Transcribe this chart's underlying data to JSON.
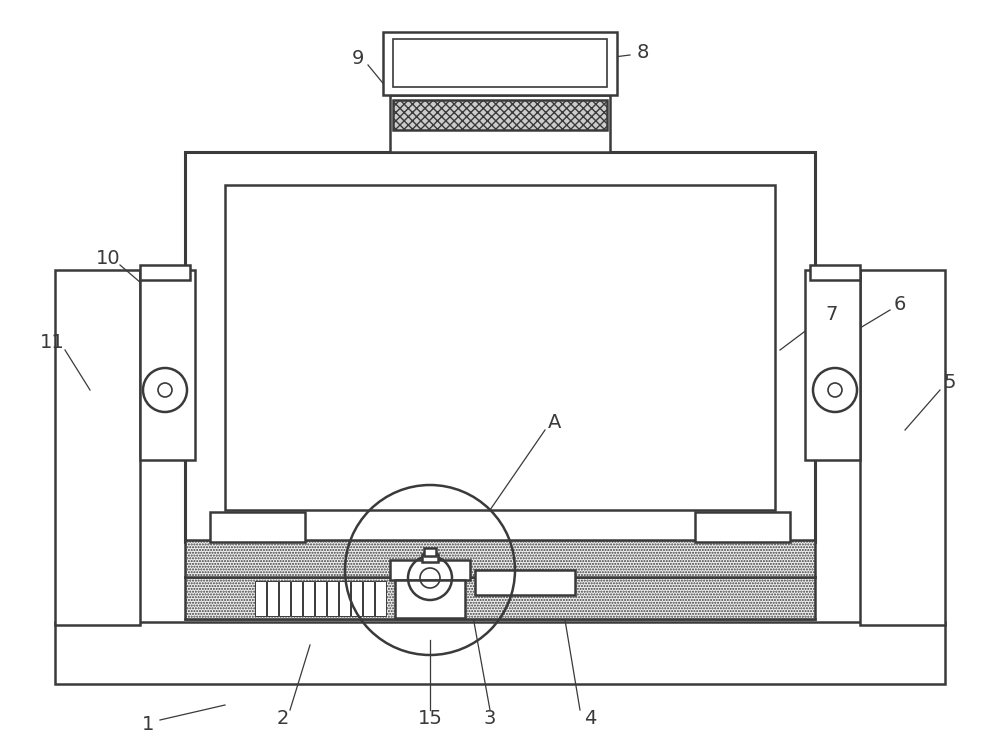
{
  "bg_color": "#ffffff",
  "line_color": "#3a3a3a",
  "lw_thin": 1.2,
  "lw_med": 1.8,
  "lw_thick": 2.2
}
